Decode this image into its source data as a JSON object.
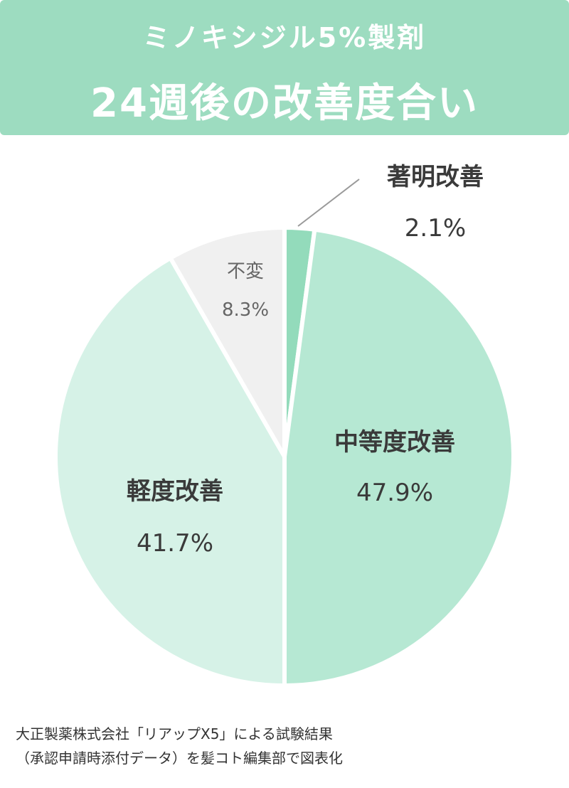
{
  "chart_data": {
    "type": "pie",
    "title": "ミノキシジル5%製剤",
    "subtitle": "24週後の改善度合い",
    "slices": [
      {
        "label": "著明改善",
        "value": 2.1,
        "value_label": "2.1%",
        "color": "#93dbbb"
      },
      {
        "label": "中等度改善",
        "value": 47.9,
        "value_label": "47.9%",
        "color": "#b6e8d3"
      },
      {
        "label": "軽度改善",
        "value": 41.7,
        "value_label": "41.7%",
        "color": "#d6f2e7"
      },
      {
        "label": "不変",
        "value": 8.3,
        "value_label": "8.3%",
        "color": "#f0f0f0"
      }
    ],
    "start_angle": "12 o'clock",
    "direction": "clockwise"
  },
  "source": {
    "line1": "大正製薬株式会社「リアップX5」による試験結果",
    "line2": "（承認申請時添付データ）を髪コト編集部で図表化"
  }
}
